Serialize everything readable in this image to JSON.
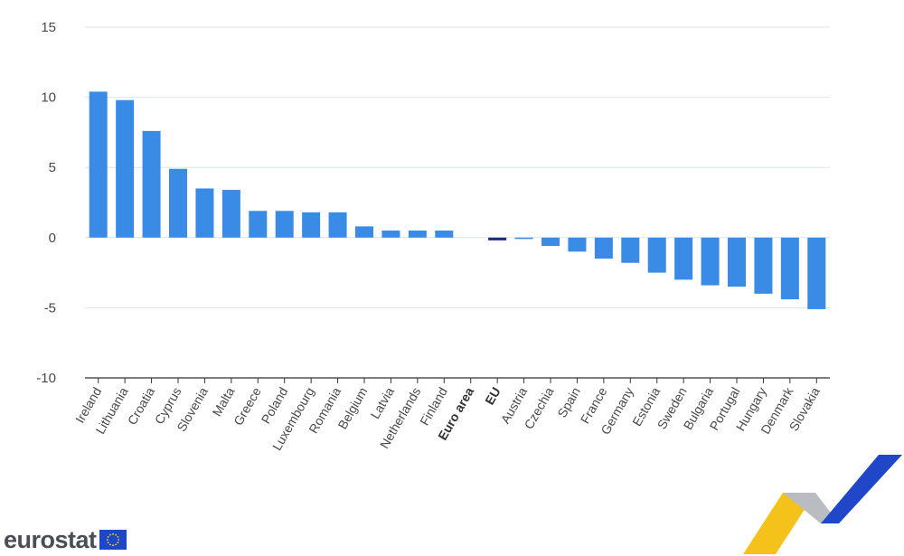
{
  "chart_data": {
    "type": "bar",
    "categories": [
      "Ireland",
      "Lithuania",
      "Croatia",
      "Cyprus",
      "Slovenia",
      "Malta",
      "Greece",
      "Poland",
      "Luxembourg",
      "Romania",
      "Belgium",
      "Latvia",
      "Netherlands",
      "Finland",
      "Euro area",
      "EU",
      "Austria",
      "Czechia",
      "Spain",
      "France",
      "Germany",
      "Estonia",
      "Sweden",
      "Bulgaria",
      "Portugal",
      "Hungary",
      "Denmark",
      "Slovakia"
    ],
    "values": [
      10.4,
      9.8,
      7.6,
      4.9,
      3.5,
      3.4,
      1.9,
      1.9,
      1.8,
      1.8,
      0.8,
      0.5,
      0.5,
      0.5,
      0.0,
      -0.2,
      -0.1,
      -0.6,
      -1.0,
      -1.5,
      -1.8,
      -2.5,
      -3.0,
      -3.4,
      -3.5,
      -4.0,
      -4.4,
      -5.1
    ],
    "bold_categories": [
      "Euro area",
      "EU"
    ],
    "highlight_categories": [
      "EU"
    ],
    "ylim": [
      -10,
      15
    ],
    "yticks": [
      15,
      10,
      5,
      0,
      -5,
      -10
    ],
    "grid": true,
    "colors": {
      "bar": "#3a8be6",
      "highlight": "#1b2f7a",
      "grid": "#dfe3ea",
      "axis": "#333333"
    }
  },
  "branding": {
    "logo_text": "eurostat",
    "logo_icon": "eu-flag-icon",
    "flag_color": "#1e46c8",
    "star_color": "#ffd617"
  }
}
